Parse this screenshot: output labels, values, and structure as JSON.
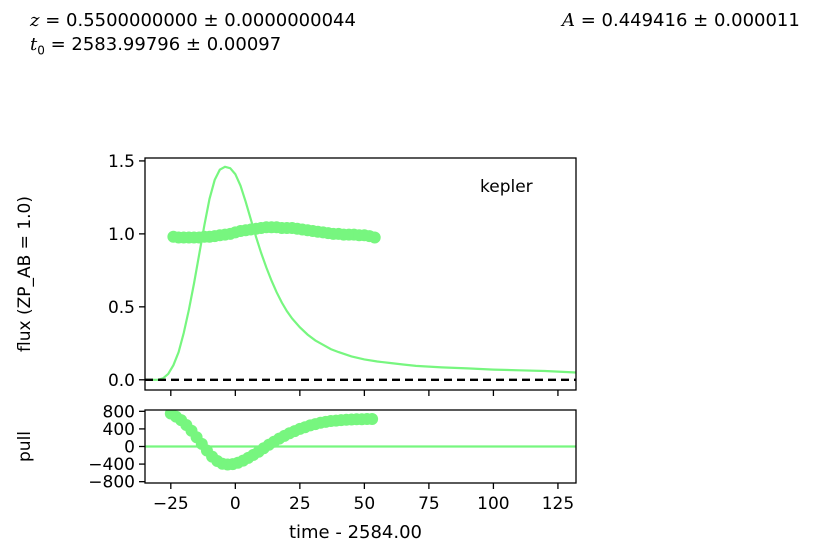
{
  "params": {
    "z": {
      "symbol": "z",
      "value": "0.5500000000",
      "error": "0.0000000044"
    },
    "t0": {
      "symbol": "t",
      "sub": "0",
      "value": "2583.99796",
      "error": "0.00097"
    },
    "A": {
      "symbol": "A",
      "value": "0.449416",
      "error": "0.000011"
    }
  },
  "colors": {
    "model": "#77f67f",
    "data": "#77f67f",
    "zero_line": "#000000"
  },
  "chart_data": [
    {
      "type": "line",
      "ylabel": "flux (ZP_AB = 1.0)",
      "annotation": "kepler",
      "xlim": [
        -35,
        132
      ],
      "ylim": [
        -0.07,
        1.52
      ],
      "yticks": [
        0.0,
        0.5,
        1.0,
        1.5
      ],
      "ytick_labels": [
        "0.0",
        "0.5",
        "1.0",
        "1.5"
      ],
      "xticks": [
        -25,
        0,
        25,
        50,
        75,
        100,
        125
      ],
      "grid": false,
      "series": [
        {
          "kind": "line",
          "x": [
            -35,
            -32,
            -30,
            -28,
            -26,
            -24,
            -22,
            -20,
            -18,
            -16,
            -14,
            -12,
            -10,
            -8,
            -6,
            -4,
            -2,
            0,
            2,
            4,
            6,
            8,
            10,
            12,
            14,
            16,
            18,
            20,
            22,
            25,
            28,
            31,
            34,
            37,
            40,
            45,
            50,
            55,
            60,
            65,
            70,
            80,
            90,
            100,
            110,
            120,
            132
          ],
          "y": [
            0.0,
            0.0,
            0.0,
            0.01,
            0.04,
            0.1,
            0.19,
            0.32,
            0.48,
            0.66,
            0.86,
            1.06,
            1.24,
            1.37,
            1.44,
            1.46,
            1.45,
            1.41,
            1.33,
            1.22,
            1.1,
            0.98,
            0.87,
            0.77,
            0.68,
            0.6,
            0.53,
            0.47,
            0.42,
            0.36,
            0.31,
            0.27,
            0.24,
            0.21,
            0.19,
            0.16,
            0.14,
            0.125,
            0.115,
            0.105,
            0.095,
            0.085,
            0.078,
            0.07,
            0.065,
            0.06,
            0.05
          ]
        },
        {
          "kind": "scatter",
          "x": [
            -24,
            -22,
            -20,
            -18,
            -16,
            -14,
            -12,
            -10,
            -8,
            -6,
            -4,
            -2,
            0,
            2,
            4,
            6,
            8,
            10,
            12,
            14,
            16,
            18,
            20,
            22,
            24,
            26,
            28,
            30,
            32,
            34,
            36,
            38,
            40,
            42,
            44,
            46,
            48,
            50,
            52,
            54
          ],
          "y": [
            0.98,
            0.975,
            0.975,
            0.975,
            0.975,
            0.975,
            0.98,
            0.98,
            0.985,
            0.99,
            0.995,
            1.0,
            1.01,
            1.02,
            1.025,
            1.03,
            1.035,
            1.04,
            1.045,
            1.045,
            1.045,
            1.04,
            1.04,
            1.04,
            1.035,
            1.03,
            1.025,
            1.02,
            1.015,
            1.01,
            1.005,
            1.0,
            1.0,
            0.995,
            0.995,
            0.995,
            0.99,
            0.99,
            0.985,
            0.975
          ]
        },
        {
          "kind": "hline",
          "y": 0
        }
      ]
    },
    {
      "type": "line",
      "ylabel": "pull",
      "xlabel": "time - 2584.00",
      "xlim": [
        -35,
        132
      ],
      "ylim": [
        -830,
        830
      ],
      "yticks": [
        800,
        400,
        0,
        -400,
        -800
      ],
      "ytick_labels": [
        "800",
        "400",
        "0",
        "−400",
        "−800"
      ],
      "xticks": [
        -25,
        0,
        25,
        50,
        75,
        100,
        125
      ],
      "xtick_labels": [
        "−25",
        "0",
        "25",
        "50",
        "75",
        "100",
        "125"
      ],
      "grid": false,
      "series": [
        {
          "kind": "scatter",
          "x": [
            -25,
            -23,
            -21,
            -19,
            -17,
            -15,
            -13,
            -11,
            -9,
            -7,
            -5,
            -3,
            -1,
            1,
            3,
            5,
            7,
            9,
            11,
            13,
            15,
            17,
            19,
            21,
            23,
            25,
            27,
            29,
            31,
            33,
            35,
            37,
            39,
            41,
            43,
            45,
            47,
            49,
            51,
            53
          ],
          "y": [
            750,
            680,
            600,
            490,
            360,
            210,
            60,
            -90,
            -230,
            -330,
            -390,
            -410,
            -400,
            -370,
            -320,
            -260,
            -190,
            -120,
            -40,
            40,
            110,
            180,
            240,
            300,
            350,
            400,
            440,
            480,
            510,
            540,
            560,
            580,
            590,
            600,
            610,
            615,
            620,
            620,
            625,
            625
          ]
        },
        {
          "kind": "hline",
          "y": 0
        }
      ]
    }
  ]
}
